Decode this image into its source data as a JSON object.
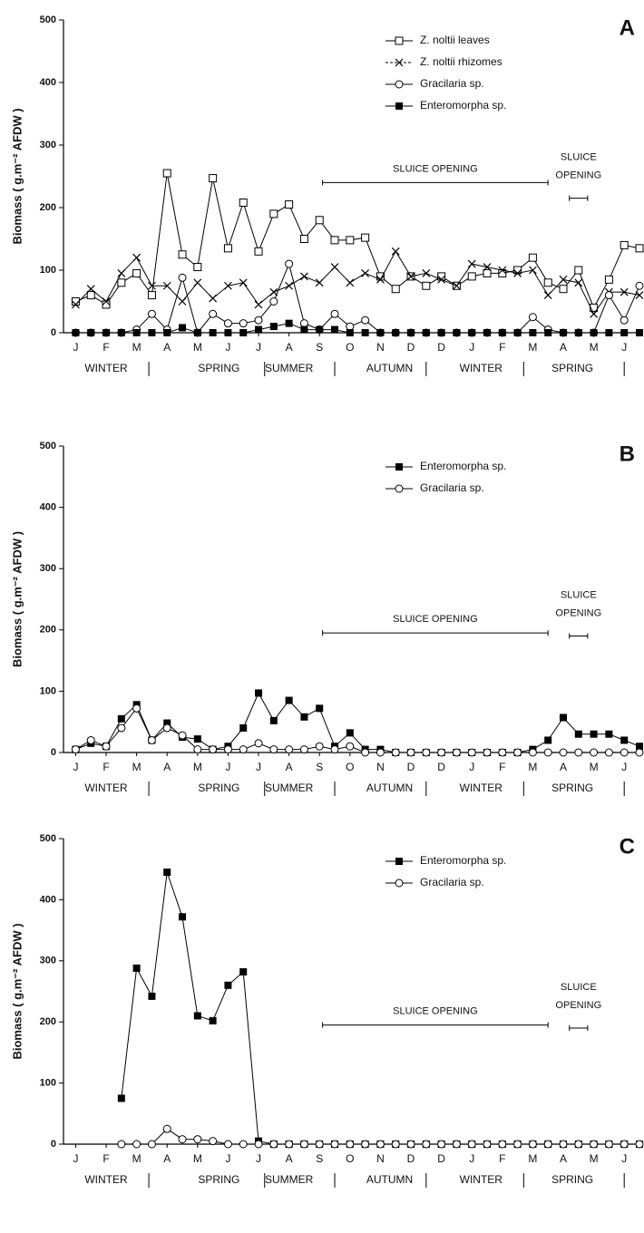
{
  "chart_data": [
    {
      "type": "line",
      "panel": "A",
      "ylabel": "Biomass ( g.m⁻² AFDW )",
      "x": [
        0,
        0.5,
        1,
        1.5,
        2,
        2.5,
        3,
        3.5,
        4,
        4.5,
        5,
        5.5,
        6,
        6.5,
        7,
        7.5,
        8,
        8.5,
        9,
        9.5,
        10,
        10.5,
        11,
        11.5,
        12,
        12.5,
        13,
        13.5,
        14,
        14.5,
        15,
        15.5,
        16,
        16.5,
        17,
        17.5,
        18,
        18.5
      ],
      "xlim": [
        -0.4,
        18.5
      ],
      "xticks": [
        {
          "value": 0,
          "label": "J"
        },
        {
          "value": 1,
          "label": "F"
        },
        {
          "value": 2,
          "label": "M"
        },
        {
          "value": 3,
          "label": "A"
        },
        {
          "value": 4,
          "label": "M"
        },
        {
          "value": 5,
          "label": "J"
        },
        {
          "value": 6,
          "label": "J"
        },
        {
          "value": 7,
          "label": "A"
        },
        {
          "value": 8,
          "label": "S"
        },
        {
          "value": 9,
          "label": "O"
        },
        {
          "value": 10,
          "label": "N"
        },
        {
          "value": 11,
          "label": "D"
        },
        {
          "value": 12,
          "label": "D"
        },
        {
          "value": 13,
          "label": "J"
        },
        {
          "value": 14,
          "label": "F"
        },
        {
          "value": 15,
          "label": "M"
        },
        {
          "value": 16,
          "label": "A"
        },
        {
          "value": 17,
          "label": "M"
        },
        {
          "value": 18,
          "label": "J"
        }
      ],
      "seasons": [
        "WINTER",
        "SPRING",
        "SUMMER",
        "AUTUMN",
        "WINTER",
        "SPRING"
      ],
      "ylim": [
        0,
        500
      ],
      "yticks": [
        0,
        100,
        200,
        300,
        400,
        500
      ],
      "annotations": [
        {
          "text": "SLUICE OPENING",
          "x": [
            8.1,
            15.5
          ],
          "y": 240
        },
        {
          "lines": [
            "SLUICE",
            "OPENING"
          ],
          "x": [
            16.2,
            16.8
          ],
          "y": 215
        }
      ],
      "series": [
        {
          "name": "Z. noltii leaves",
          "color": "#000000",
          "marker": "square-open",
          "values": [
            50,
            60,
            45,
            80,
            95,
            60,
            255,
            125,
            105,
            247,
            135,
            208,
            130,
            190,
            205,
            150,
            180,
            148,
            148,
            152,
            90,
            70,
            90,
            75,
            90,
            75,
            90,
            95,
            95,
            100,
            120,
            80,
            70,
            100,
            40,
            85,
            140,
            135
          ]
        },
        {
          "name": "Z. noltii rhizomes",
          "color": "#000000",
          "marker": "x",
          "values": [
            45,
            70,
            50,
            95,
            120,
            75,
            75,
            50,
            80,
            55,
            75,
            80,
            45,
            65,
            75,
            90,
            80,
            105,
            80,
            95,
            85,
            130,
            90,
            95,
            85,
            75,
            110,
            105,
            100,
            95,
            100,
            60,
            85,
            80,
            30,
            65,
            65,
            60
          ]
        },
        {
          "name": "Gracilaria sp.",
          "color": "#000000",
          "marker": "circle-open",
          "values": [
            0,
            0,
            0,
            0,
            5,
            30,
            5,
            88,
            0,
            30,
            15,
            15,
            20,
            50,
            110,
            15,
            5,
            30,
            10,
            20,
            0,
            0,
            0,
            0,
            0,
            0,
            0,
            0,
            0,
            0,
            25,
            5,
            0,
            0,
            0,
            60,
            20,
            75
          ]
        },
        {
          "name": "Enteromorpha sp.",
          "color": "#000000",
          "marker": "square-filled",
          "values": [
            0,
            0,
            0,
            0,
            0,
            0,
            0,
            8,
            0,
            0,
            0,
            0,
            5,
            10,
            15,
            5,
            5,
            5,
            0,
            0,
            0,
            0,
            0,
            0,
            0,
            0,
            0,
            0,
            0,
            0,
            0,
            0,
            0,
            0,
            0,
            0,
            0,
            0
          ]
        }
      ]
    },
    {
      "type": "line",
      "panel": "B",
      "ylabel": "Biomass ( g.m⁻² AFDW )",
      "x": [
        0,
        0.5,
        1,
        1.5,
        2,
        2.5,
        3,
        3.5,
        4,
        4.5,
        5,
        5.5,
        6,
        6.5,
        7,
        7.5,
        8,
        8.5,
        9,
        9.5,
        10,
        10.5,
        11,
        11.5,
        12,
        12.5,
        13,
        13.5,
        14,
        14.5,
        15,
        15.5,
        16,
        16.5,
        17,
        17.5,
        18,
        18.5
      ],
      "xlim": [
        -0.4,
        18.5
      ],
      "xticks": [
        {
          "value": 0,
          "label": "J"
        },
        {
          "value": 1,
          "label": "F"
        },
        {
          "value": 2,
          "label": "M"
        },
        {
          "value": 3,
          "label": "A"
        },
        {
          "value": 4,
          "label": "M"
        },
        {
          "value": 5,
          "label": "J"
        },
        {
          "value": 6,
          "label": "J"
        },
        {
          "value": 7,
          "label": "A"
        },
        {
          "value": 8,
          "label": "S"
        },
        {
          "value": 9,
          "label": "O"
        },
        {
          "value": 10,
          "label": "N"
        },
        {
          "value": 11,
          "label": "D"
        },
        {
          "value": 12,
          "label": "D"
        },
        {
          "value": 13,
          "label": "J"
        },
        {
          "value": 14,
          "label": "F"
        },
        {
          "value": 15,
          "label": "M"
        },
        {
          "value": 16,
          "label": "A"
        },
        {
          "value": 17,
          "label": "M"
        },
        {
          "value": 18,
          "label": "J"
        }
      ],
      "seasons": [
        "WINTER",
        "SPRING",
        "SUMMER",
        "AUTUMN",
        "WINTER",
        "SPRING"
      ],
      "ylim": [
        0,
        500
      ],
      "yticks": [
        0,
        100,
        200,
        300,
        400,
        500
      ],
      "annotations": [
        {
          "text": "SLUICE OPENING",
          "x": [
            8.1,
            15.5
          ],
          "y": 195
        },
        {
          "lines": [
            "SLUICE",
            "OPENING"
          ],
          "x": [
            16.2,
            16.8
          ],
          "y": 190
        }
      ],
      "series": [
        {
          "name": "Enteromorpha sp.",
          "color": "#000000",
          "marker": "square-filled",
          "values": [
            5,
            15,
            10,
            55,
            78,
            20,
            48,
            25,
            22,
            5,
            10,
            40,
            97,
            52,
            85,
            58,
            72,
            10,
            32,
            5,
            5,
            0,
            0,
            0,
            0,
            0,
            0,
            0,
            0,
            0,
            5,
            20,
            57,
            30,
            30,
            30,
            20,
            10
          ]
        },
        {
          "name": "Gracilaria sp.",
          "color": "#000000",
          "marker": "circle-open",
          "values": [
            5,
            20,
            10,
            40,
            72,
            20,
            40,
            28,
            5,
            5,
            5,
            5,
            15,
            5,
            5,
            5,
            10,
            5,
            10,
            0,
            0,
            0,
            0,
            0,
            0,
            0,
            0,
            0,
            0,
            0,
            0,
            0,
            0,
            0,
            0,
            0,
            0,
            0
          ]
        }
      ]
    },
    {
      "type": "line",
      "panel": "C",
      "ylabel": "Biomass ( g.m⁻² AFDW )",
      "x": [
        0,
        0.5,
        1,
        1.5,
        2,
        2.5,
        3,
        3.5,
        4,
        4.5,
        5,
        5.5,
        6,
        6.5,
        7,
        7.5,
        8,
        8.5,
        9,
        9.5,
        10,
        10.5,
        11,
        11.5,
        12,
        12.5,
        13,
        13.5,
        14,
        14.5,
        15,
        15.5,
        16,
        16.5,
        17,
        17.5,
        18,
        18.5
      ],
      "xlim": [
        -0.4,
        18.5
      ],
      "xticks": [
        {
          "value": 0,
          "label": "J"
        },
        {
          "value": 1,
          "label": "F"
        },
        {
          "value": 2,
          "label": "M"
        },
        {
          "value": 3,
          "label": "A"
        },
        {
          "value": 4,
          "label": "M"
        },
        {
          "value": 5,
          "label": "J"
        },
        {
          "value": 6,
          "label": "J"
        },
        {
          "value": 7,
          "label": "A"
        },
        {
          "value": 8,
          "label": "S"
        },
        {
          "value": 9,
          "label": "O"
        },
        {
          "value": 10,
          "label": "N"
        },
        {
          "value": 11,
          "label": "D"
        },
        {
          "value": 12,
          "label": "D"
        },
        {
          "value": 13,
          "label": "J"
        },
        {
          "value": 14,
          "label": "F"
        },
        {
          "value": 15,
          "label": "M"
        },
        {
          "value": 16,
          "label": "A"
        },
        {
          "value": 17,
          "label": "M"
        },
        {
          "value": 18,
          "label": "J"
        }
      ],
      "seasons": [
        "WINTER",
        "SPRING",
        "SUMMER",
        "AUTUMN",
        "WINTER",
        "SPRING"
      ],
      "ylim": [
        0,
        500
      ],
      "yticks": [
        0,
        100,
        200,
        300,
        400,
        500
      ],
      "annotations": [
        {
          "text": "SLUICE OPENING",
          "x": [
            8.1,
            15.5
          ],
          "y": 195
        },
        {
          "lines": [
            "SLUICE",
            "OPENING"
          ],
          "x": [
            16.2,
            16.8
          ],
          "y": 190
        }
      ],
      "series": [
        {
          "name": "Enteromorpha sp.",
          "color": "#000000",
          "marker": "square-filled",
          "values": [
            null,
            null,
            null,
            75,
            288,
            242,
            445,
            372,
            210,
            202,
            260,
            282,
            5,
            0,
            0,
            0,
            0,
            0,
            0,
            0,
            0,
            0,
            0,
            0,
            0,
            0,
            0,
            0,
            0,
            0,
            0,
            0,
            0,
            0,
            0,
            0,
            0,
            0
          ]
        },
        {
          "name": "Gracilaria sp.",
          "color": "#000000",
          "marker": "circle-open",
          "values": [
            null,
            null,
            null,
            0,
            0,
            0,
            25,
            8,
            8,
            5,
            0,
            0,
            0,
            0,
            0,
            0,
            0,
            0,
            0,
            0,
            0,
            0,
            0,
            0,
            0,
            0,
            0,
            0,
            0,
            0,
            0,
            0,
            0,
            0,
            0,
            0,
            0,
            0
          ]
        }
      ]
    }
  ]
}
